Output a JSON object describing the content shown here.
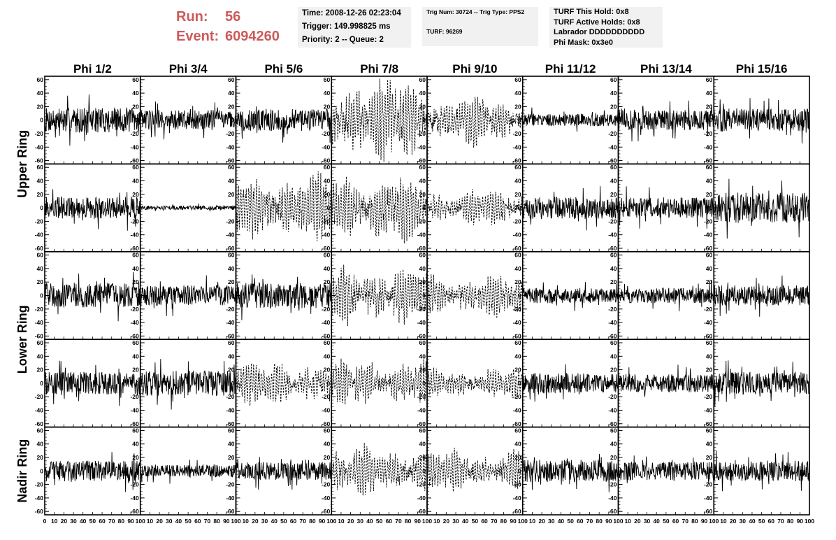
{
  "header": {
    "run_label": "Run:",
    "run_value": "56",
    "event_label": "Event:",
    "event_value": "6094260",
    "time_info": [
      "Time: 2008-12-26 02:23:04",
      "Trigger: 149.998825 ms",
      "Priority: 2 -- Queue: 2"
    ],
    "trig_info": [
      "Trig Num: 30724 -- Trig Type: PPS2",
      "TURF: 96269"
    ],
    "turf_info": [
      "TURF This Hold: 0x8",
      "TURF Active Holds: 0x8",
      "Labrador DDDDDDDDDD",
      "Phi Mask: 0x3e0"
    ]
  },
  "colors": {
    "run_text": "#cc5a5a",
    "info_background": "#f1f1f1",
    "trace": "#000000"
  },
  "chart_data": {
    "type": "line",
    "layout": "grid of 5 rows x 8 columns of waveform panels",
    "columns": [
      "Phi 1/2",
      "Phi 3/4",
      "Phi 5/6",
      "Phi 7/8",
      "Phi 9/10",
      "Phi 11/12",
      "Phi 13/14",
      "Phi 15/16"
    ],
    "row_labels": [
      "Upper Ring",
      "Lower Ring",
      "Nadir Ring"
    ],
    "row_label_groups": [
      2,
      2,
      1
    ],
    "xlim": [
      0,
      100
    ],
    "ylim": [
      -65,
      65
    ],
    "y_ticks": [
      60,
      40,
      20,
      0,
      -20,
      -40,
      -60
    ],
    "x_tick_labels": [
      "0",
      "10",
      "20",
      "30",
      "40",
      "50",
      "60",
      "70",
      "80",
      "90",
      "100"
    ],
    "trace_style": "solid, except dashed in panels with strong coherent signal",
    "dashed_panels": [
      [
        0,
        3
      ],
      [
        0,
        4
      ],
      [
        1,
        2
      ],
      [
        1,
        3
      ],
      [
        1,
        4
      ],
      [
        2,
        3
      ],
      [
        2,
        4
      ],
      [
        3,
        2
      ],
      [
        3,
        3
      ],
      [
        3,
        4
      ],
      [
        4,
        3
      ],
      [
        4,
        4
      ]
    ],
    "panel_amplitudes": [
      [
        25,
        20,
        22,
        50,
        30,
        12,
        20,
        22
      ],
      [
        22,
        4,
        40,
        42,
        22,
        22,
        20,
        30
      ],
      [
        24,
        20,
        25,
        35,
        25,
        15,
        15,
        20
      ],
      [
        22,
        25,
        28,
        28,
        18,
        20,
        18,
        22
      ],
      [
        20,
        12,
        18,
        30,
        25,
        22,
        18,
        20
      ]
    ],
    "samples_per_panel": 260
  }
}
